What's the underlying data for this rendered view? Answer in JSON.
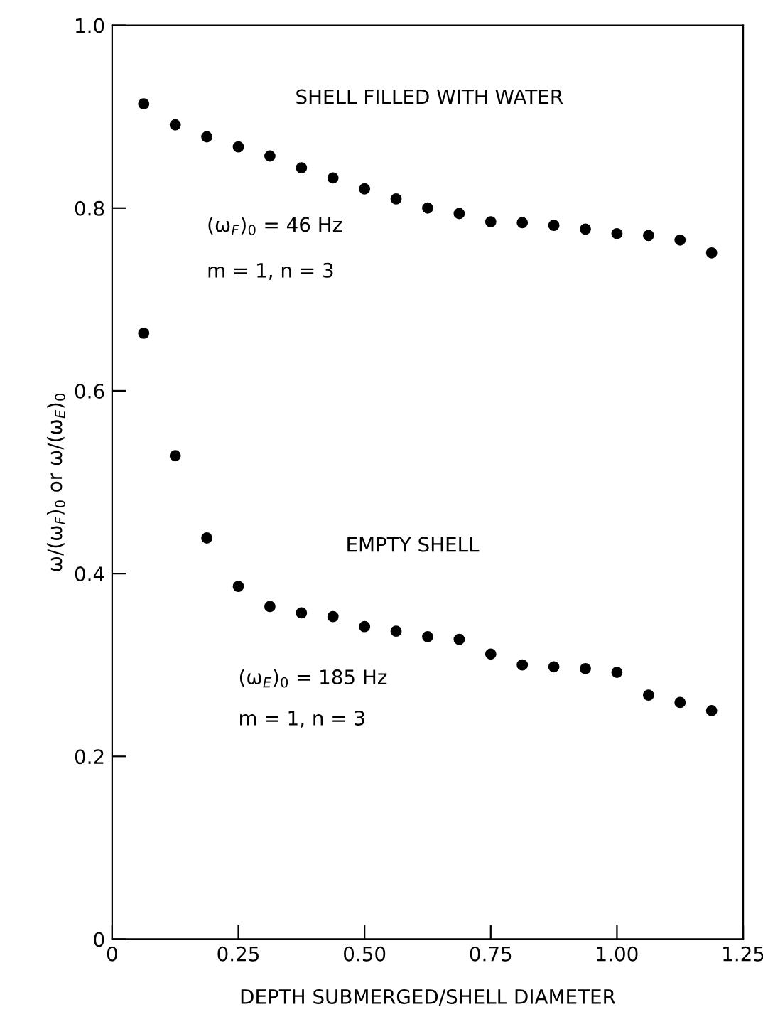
{
  "chart_data": {
    "type": "scatter",
    "xlabel": "DEPTH SUBMERGED/SHELL DIAMETER",
    "ylabel": "ω/(ω$_{F}$)$_{0}$ or ω/(ω$_{E}$)$_{0}$",
    "x": [
      0.0625,
      0.125,
      0.1875,
      0.25,
      0.3125,
      0.375,
      0.4375,
      0.5,
      0.5625,
      0.625,
      0.6875,
      0.75,
      0.8125,
      0.875,
      0.9375,
      1.0,
      1.0625,
      1.125,
      1.1875
    ],
    "series": [
      {
        "color": "#000000",
        "values": [
          0.914,
          0.891,
          0.878,
          0.867,
          0.857,
          0.844,
          0.833,
          0.821,
          0.81,
          0.8,
          0.794,
          0.785,
          0.784,
          0.781,
          0.777,
          0.772,
          0.77,
          0.765,
          0.751
        ]
      },
      {
        "color": "#000000",
        "values": [
          0.663,
          0.529,
          0.439,
          0.386,
          0.364,
          0.357,
          0.353,
          0.342,
          0.337,
          0.331,
          0.328,
          0.312,
          0.3,
          0.298,
          0.296,
          0.292,
          0.267,
          0.259,
          0.25
        ]
      }
    ],
    "annotations": [
      "SHELL FILLED WITH WATER",
      "(ω$_{F}$)$_{0}$ = 46 Hz",
      "m = 1, n = 3",
      "EMPTY SHELL",
      "(ω$_{E}$)$_{0}$ = 185 Hz",
      "m = 1, n = 3"
    ],
    "xlim": [
      0,
      1.25
    ],
    "ylim": [
      0,
      1.0
    ],
    "xticks": [
      0,
      0.25,
      {
        "value": 0.5,
        "label": "0.50"
      },
      0.75,
      {
        "value": 1.0,
        "label": "1.00"
      },
      1.25
    ],
    "yticks": [
      0,
      0.2,
      0.4,
      0.6,
      0.8,
      {
        "value": 1.0,
        "label": "1.0"
      }
    ],
    "grid": false,
    "legend": false,
    "marker": "circle"
  }
}
